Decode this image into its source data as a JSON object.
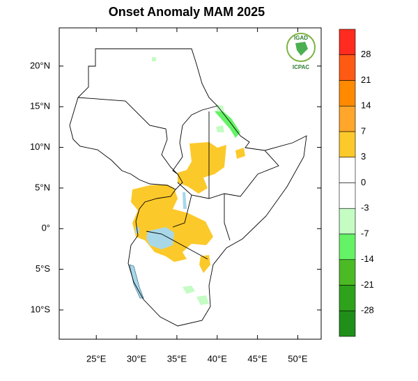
{
  "title": "Onset Anomaly MAM 2025",
  "logo": {
    "top_text": "IGAD",
    "bottom_text": "ICPAC"
  },
  "map": {
    "lonlim": [
      20.4,
      52.9
    ],
    "latlim": [
      -13.6,
      24.7
    ],
    "lon_ticks": [
      {
        "value": 25,
        "label": "25°E"
      },
      {
        "value": 30,
        "label": "30°E"
      },
      {
        "value": 35,
        "label": "35°E"
      },
      {
        "value": 40,
        "label": "40°E"
      },
      {
        "value": 45,
        "label": "45°E"
      },
      {
        "value": 50,
        "label": "50°E"
      }
    ],
    "lat_ticks": [
      {
        "value": 20,
        "label": "20°N"
      },
      {
        "value": 15,
        "label": "15°N"
      },
      {
        "value": 10,
        "label": "10°N"
      },
      {
        "value": 5,
        "label": "5°N"
      },
      {
        "value": 0,
        "label": "0°"
      },
      {
        "value": -5,
        "label": "5°S"
      },
      {
        "value": -10,
        "label": "10°S"
      }
    ]
  },
  "colorbar": {
    "levels": [
      28,
      21,
      14,
      7,
      3,
      0,
      -3,
      -7,
      -14,
      -21,
      -28
    ],
    "colors": [
      "#ff2b1f",
      "#ff5a14",
      "#ff8a00",
      "#ffa62b",
      "#fcc92b",
      "#ffffff",
      "#ffffff",
      "#c4fcc4",
      "#66f266",
      "#4cba25",
      "#2ea21a",
      "#1f8f1a"
    ]
  }
}
